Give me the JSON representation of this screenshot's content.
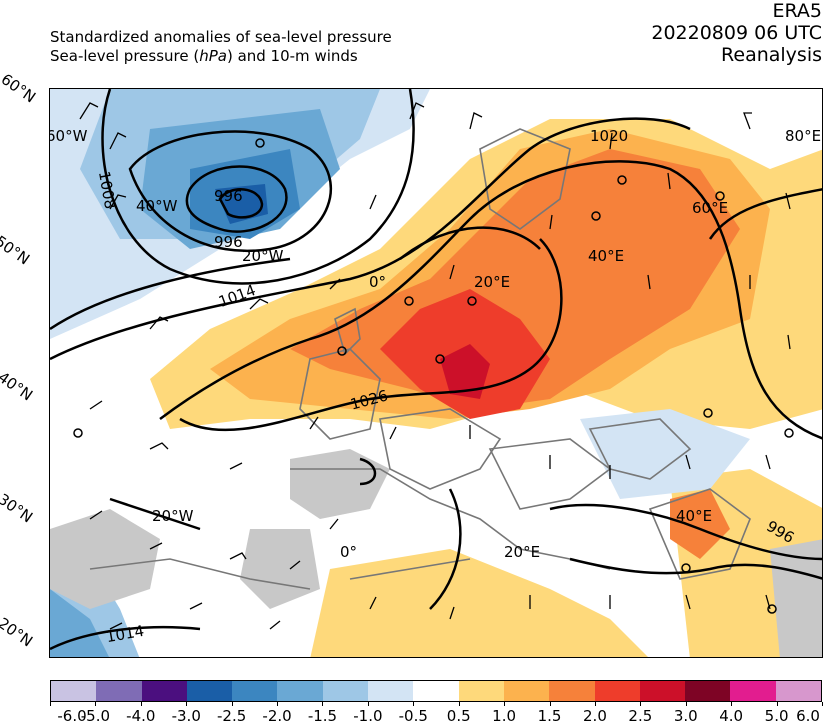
{
  "header": {
    "title_line1": "Standardized anomalies of sea-level pressure",
    "title_line2_a": "Sea-level pressure (",
    "title_line2_unit": "hPa",
    "title_line2_b": ") and 10-m winds",
    "source": "ERA5",
    "datetime": "20220809 06 UTC",
    "product": "Reanalysis"
  },
  "lat_labels": [
    "60°N",
    "50°N",
    "40°N",
    "30°N",
    "20°N"
  ],
  "lon_labels": [
    "60°W",
    "40°W",
    "20°W",
    "0°",
    "20°E",
    "40°E",
    "60°E",
    "80°E",
    "20°W",
    "0°",
    "20°E",
    "40°E"
  ],
  "isobar_labels": [
    "996",
    "996",
    "1008",
    "1014",
    "1020",
    "1026",
    "1014",
    "996"
  ],
  "colorbar": {
    "colors": [
      "#c9c3e3",
      "#7f6cb5",
      "#4b0f7f",
      "#1a5ea7",
      "#3c86c0",
      "#6aa8d4",
      "#9ec7e6",
      "#d3e4f4",
      "#ffffff",
      "#fed97b",
      "#fcb24e",
      "#f6813a",
      "#ee3d2b",
      "#cc1029",
      "#7e0425",
      "#e21d8f",
      "#d797cd"
    ],
    "tick_labels": [
      "-6.0",
      "-5.0",
      "-4.0",
      "-3.0",
      "-2.5",
      "-2.0",
      "-1.5",
      "-1.0",
      "-0.5",
      "0.5",
      "1.0",
      "1.5",
      "2.0",
      "2.5",
      "3.0",
      "4.0",
      "5.0",
      "6.0"
    ]
  }
}
